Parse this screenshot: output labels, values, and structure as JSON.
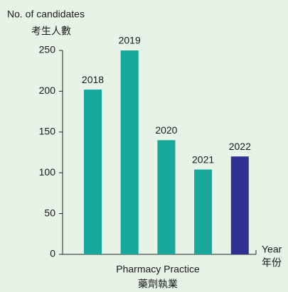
{
  "chart_data": {
    "type": "bar",
    "y_label": [
      "No. of candidates",
      "考生人數"
    ],
    "x_label": [
      "Year",
      "年份"
    ],
    "group_label": [
      "Pharmacy Practice",
      "藥劑執業"
    ],
    "categories": [
      "2018",
      "2019",
      "2020",
      "2021",
      "2022"
    ],
    "values": [
      202,
      250,
      140,
      104,
      120
    ],
    "colors": [
      "#15a89b",
      "#15a89b",
      "#15a89b",
      "#15a89b",
      "#2e3192"
    ],
    "ylim": [
      0,
      250
    ],
    "yticks": [
      0,
      50,
      100,
      150,
      200,
      250
    ],
    "grid": false
  }
}
